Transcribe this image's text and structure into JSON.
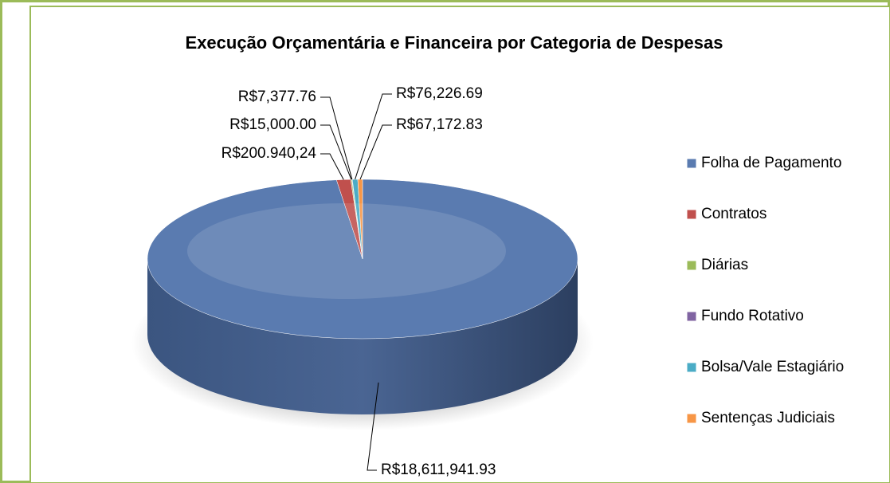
{
  "chart_data": {
    "type": "pie",
    "title": "Execução Orçamentária e Financeira por Categoria de Despesas",
    "categories": [
      "Folha de Pagamento",
      "Contratos",
      "Diárias",
      "Fundo Rotativo",
      "Bolsa/Vale Estagiário",
      "Sentenças Judiciais"
    ],
    "values": [
      18611941.93,
      200940.24,
      15000.0,
      7377.76,
      76226.69,
      67172.83
    ],
    "value_labels": [
      "R$18,611,941.93",
      "R$200.940,24",
      "R$15,000.00",
      "R$7,377.76",
      "R$76,226.69",
      "R$67,172.83"
    ],
    "colors": [
      "#5a7bb0",
      "#c0504d",
      "#9bbb59",
      "#8064a2",
      "#4bacc6",
      "#f79646"
    ],
    "legend": "right"
  }
}
